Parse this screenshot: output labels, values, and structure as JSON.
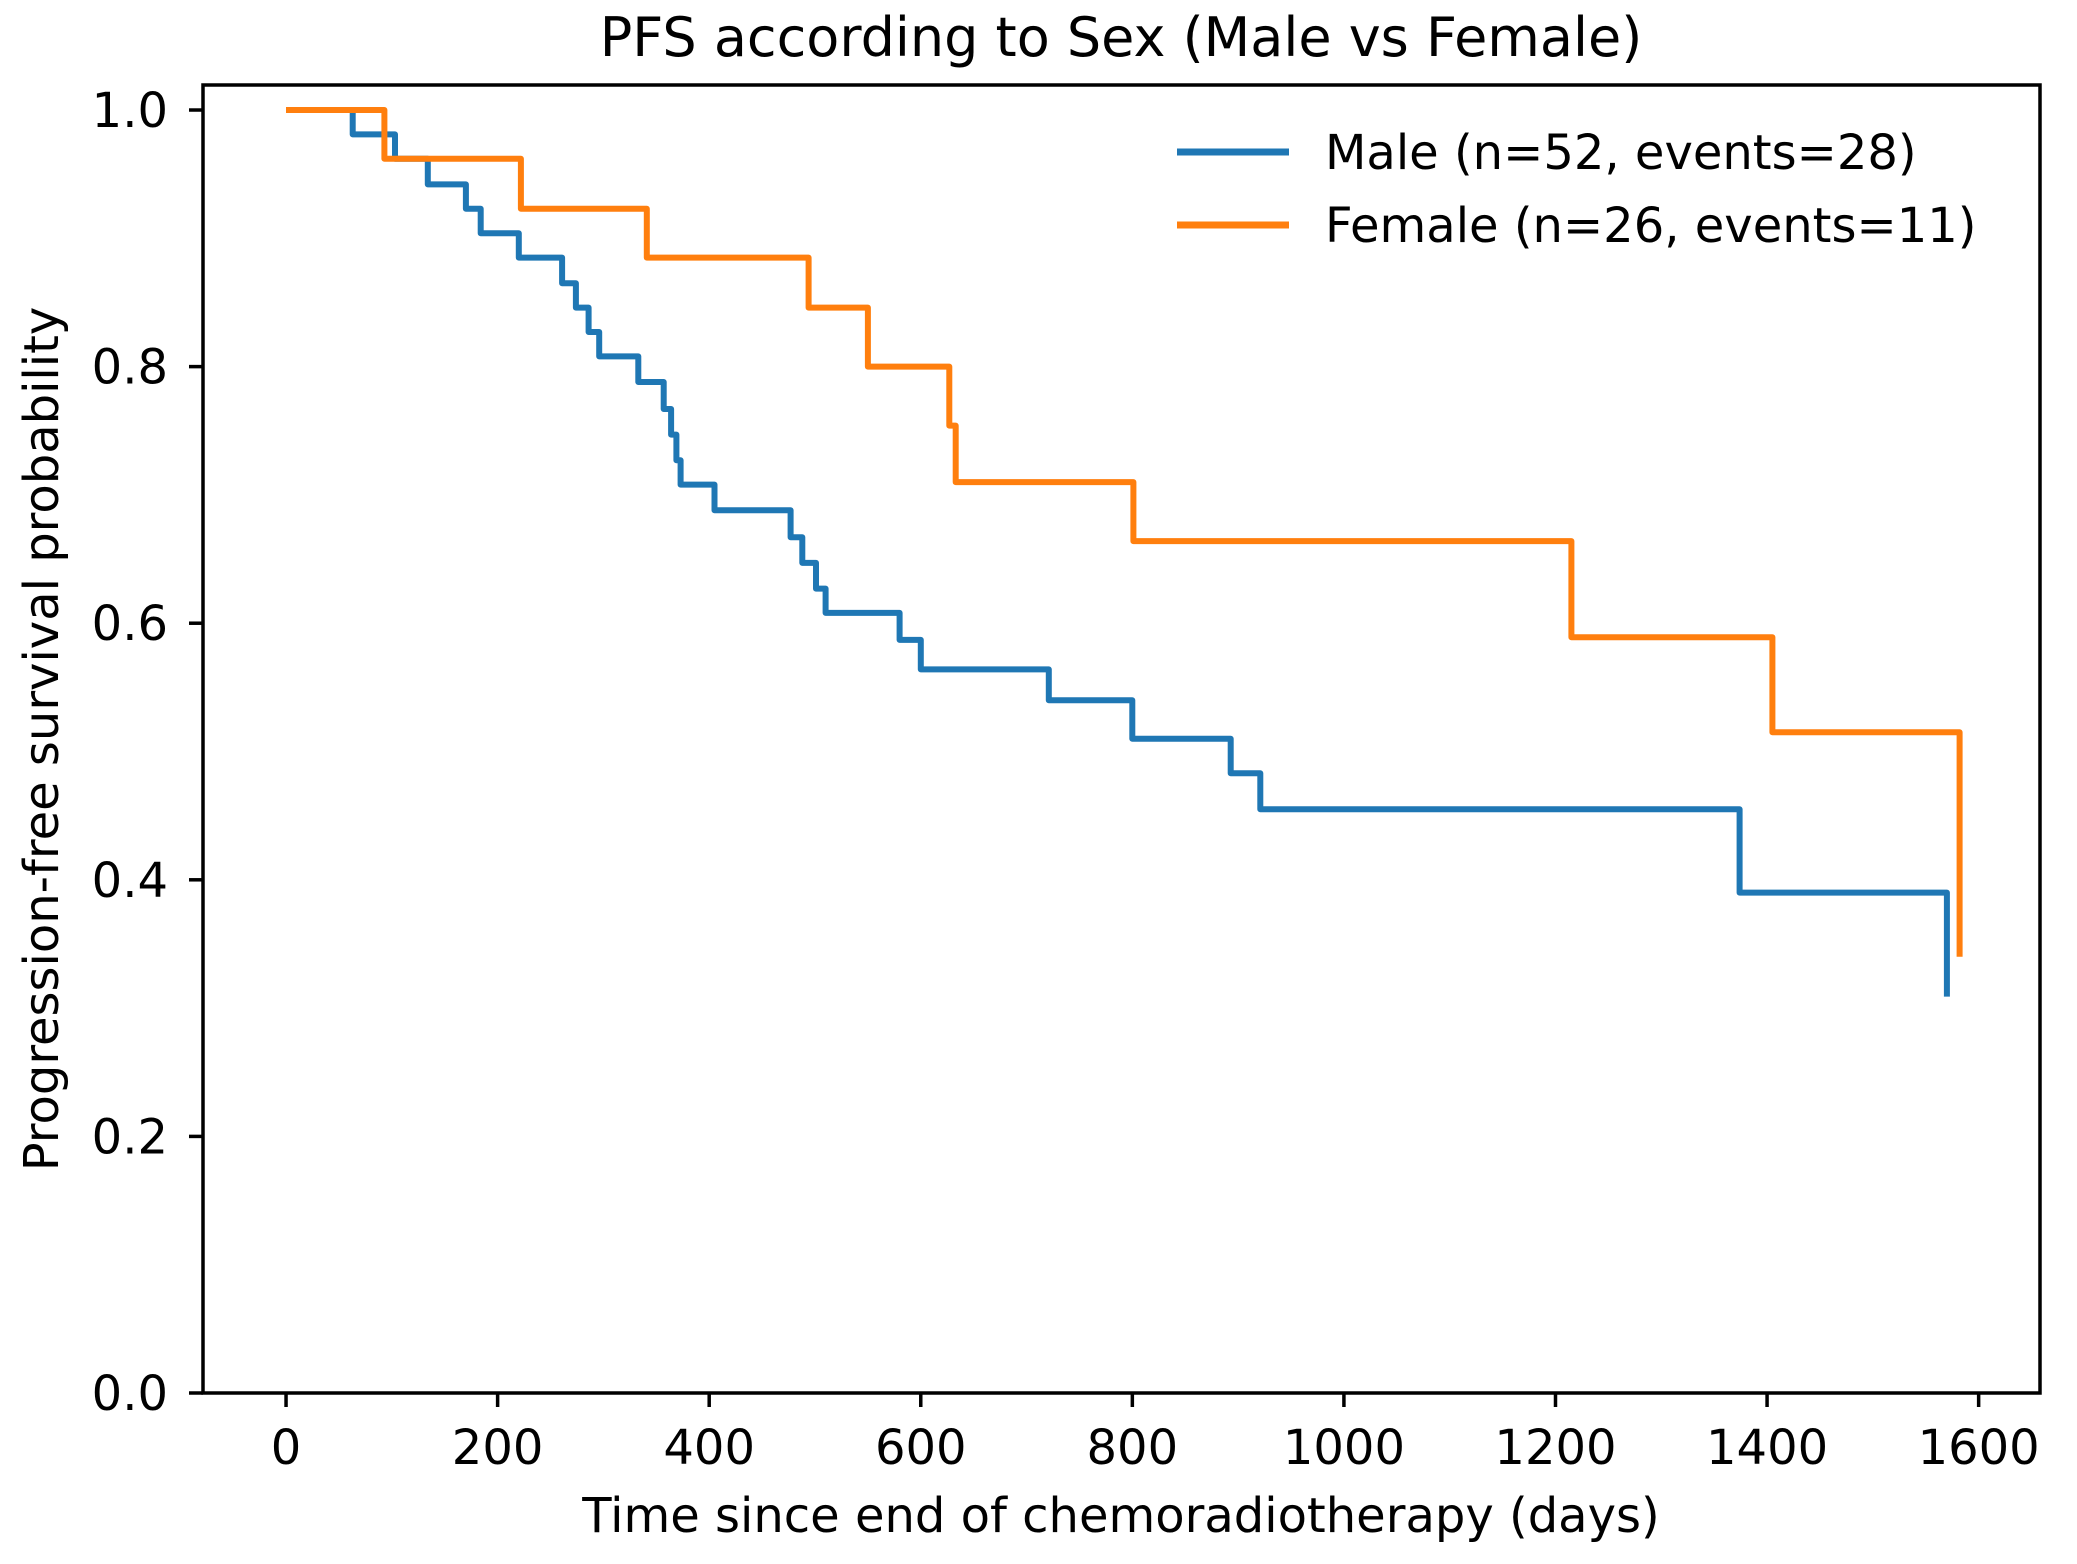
{
  "chart_data": {
    "type": "line",
    "chart_kind": "kaplan_meier_step",
    "title": "PFS according to Sex (Male vs Female)",
    "xlabel": "Time since end of chemoradiotherapy (days)",
    "ylabel": "Progression-free survival probability",
    "xlim": [
      -78.5,
      1658
    ],
    "ylim": [
      0,
      1.0195
    ],
    "x_ticks": [
      "0",
      "200",
      "400",
      "600",
      "800",
      "1000",
      "1200",
      "1400",
      "1600"
    ],
    "x_tick_values": [
      0,
      200,
      400,
      600,
      800,
      1000,
      1200,
      1400,
      1600
    ],
    "y_ticks": [
      "0.0",
      "0.2",
      "0.4",
      "0.6",
      "0.8",
      "1.0"
    ],
    "y_tick_values": [
      0.0,
      0.2,
      0.4,
      0.6,
      0.8,
      1.0
    ],
    "grid": false,
    "legend_position": "upper right",
    "series": [
      {
        "name": "Male (n=52, events=28)",
        "color": "#1f77b4",
        "n": 52,
        "events": 28,
        "points": [
          [
            0,
            1.0
          ],
          [
            63,
            0.981
          ],
          [
            103,
            0.962
          ],
          [
            134,
            0.942
          ],
          [
            170,
            0.923
          ],
          [
            184,
            0.904
          ],
          [
            220,
            0.885
          ],
          [
            261,
            0.865
          ],
          [
            274,
            0.846
          ],
          [
            286,
            0.827
          ],
          [
            296,
            0.808
          ],
          [
            333,
            0.788
          ],
          [
            357,
            0.767
          ],
          [
            364,
            0.747
          ],
          [
            369,
            0.727
          ],
          [
            373,
            0.708
          ],
          [
            405,
            0.688
          ],
          [
            477,
            0.667
          ],
          [
            488,
            0.647
          ],
          [
            501,
            0.627
          ],
          [
            510,
            0.608
          ],
          [
            580,
            0.587
          ],
          [
            600,
            0.564
          ],
          [
            721,
            0.54
          ],
          [
            800,
            0.51
          ],
          [
            893,
            0.483
          ],
          [
            921,
            0.455
          ],
          [
            1374,
            0.39
          ],
          [
            1570,
            0.309
          ]
        ]
      },
      {
        "name": "Female (n=26, events=11)",
        "color": "#ff7f0e",
        "n": 26,
        "events": 11,
        "points": [
          [
            0,
            1.0
          ],
          [
            93,
            0.962
          ],
          [
            222,
            0.923
          ],
          [
            341,
            0.885
          ],
          [
            494,
            0.846
          ],
          [
            550,
            0.8
          ],
          [
            627,
            0.754
          ],
          [
            633,
            0.71
          ],
          [
            801,
            0.664
          ],
          [
            1215,
            0.589
          ],
          [
            1405,
            0.515
          ],
          [
            1582,
            0.34
          ]
        ]
      }
    ]
  }
}
